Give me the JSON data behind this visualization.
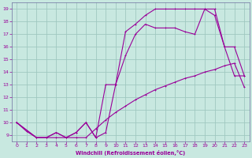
{
  "xlabel": "Windchill (Refroidissement éolien,°C)",
  "bg_color": "#c8e8e0",
  "grid_color": "#a0c8c0",
  "line_color": "#990099",
  "spine_color": "#7070a0",
  "xlim": [
    -0.5,
    23.5
  ],
  "ylim": [
    8.5,
    19.5
  ],
  "xticks": [
    0,
    1,
    2,
    3,
    4,
    5,
    6,
    7,
    8,
    9,
    10,
    11,
    12,
    13,
    14,
    15,
    16,
    17,
    18,
    19,
    20,
    21,
    22,
    23
  ],
  "yticks": [
    9,
    10,
    11,
    12,
    13,
    14,
    15,
    16,
    17,
    18,
    19
  ],
  "line1_x": [
    0,
    1,
    2,
    3,
    4,
    5,
    6,
    7,
    8,
    9,
    10,
    11,
    12,
    13,
    14,
    15,
    16,
    17,
    18,
    19,
    20,
    21,
    22,
    23
  ],
  "line1_y": [
    10.0,
    9.3,
    8.8,
    8.8,
    8.8,
    8.8,
    8.8,
    8.8,
    9.5,
    10.2,
    10.8,
    11.3,
    11.8,
    12.2,
    12.6,
    12.9,
    13.2,
    13.5,
    13.7,
    14.0,
    14.2,
    14.5,
    14.7,
    12.8
  ],
  "line2_x": [
    0,
    2,
    3,
    4,
    5,
    6,
    7,
    8,
    9,
    10,
    11,
    12,
    13,
    14,
    15,
    16,
    17,
    18,
    19,
    20,
    21,
    22,
    23
  ],
  "line2_y": [
    10.0,
    8.8,
    8.8,
    9.2,
    8.8,
    9.2,
    10.0,
    8.8,
    9.2,
    13.0,
    15.3,
    17.0,
    17.8,
    17.5,
    17.5,
    17.5,
    17.2,
    17.0,
    19.0,
    19.0,
    16.0,
    16.0,
    13.7
  ],
  "line3_x": [
    0,
    2,
    3,
    4,
    5,
    6,
    7,
    8,
    9,
    10,
    11,
    12,
    13,
    14,
    15,
    16,
    17,
    18,
    19,
    20,
    21,
    22,
    23
  ],
  "line3_y": [
    10.0,
    8.8,
    8.8,
    9.2,
    8.8,
    9.2,
    10.0,
    8.8,
    13.0,
    13.0,
    17.2,
    17.8,
    18.5,
    19.0,
    19.0,
    19.0,
    19.0,
    19.0,
    19.0,
    18.5,
    16.0,
    13.7,
    13.7
  ]
}
